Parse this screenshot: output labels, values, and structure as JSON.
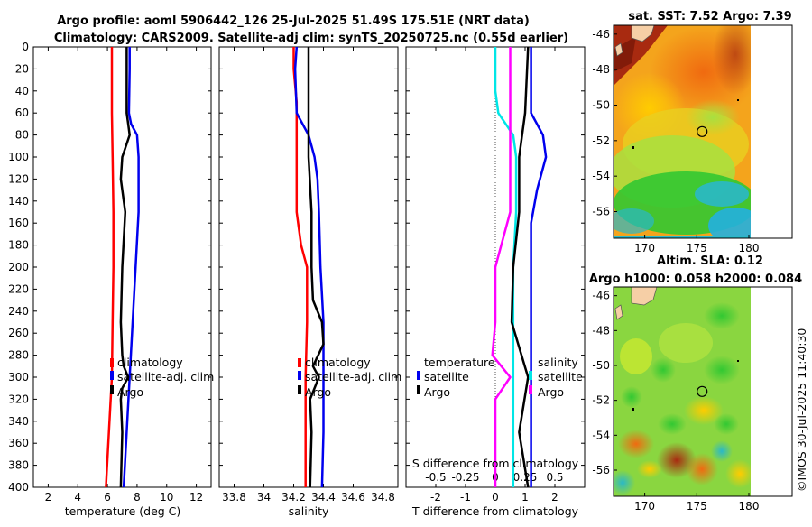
{
  "figure": {
    "title_line1": "Argo profile: aoml 5906442_126 25-Jul-2025 51.49S 175.51E (NRT data)",
    "title_line2": "Climatology: CARS2009. Satellite-adj clim: synTS_20250725.nc (0.55d earlier)",
    "watermark": "©IMOS 30-Jul-2025 11:40:30"
  },
  "colors": {
    "climatology": "#ff0000",
    "satellite": "#0000ee",
    "argo": "#000000",
    "t_diff": "#00e6e6",
    "s_diff": "#ff00ff"
  },
  "chart_data": [
    {
      "type": "line",
      "id": "temperature",
      "xlabel": "temperature (deg C)",
      "ylabel": "",
      "xlim": [
        1,
        13
      ],
      "ylim": [
        400,
        0
      ],
      "xticks": [
        "2",
        "4",
        "6",
        "8",
        "10",
        "12"
      ],
      "yticks": [
        "0",
        "20",
        "40",
        "60",
        "80",
        "100",
        "120",
        "140",
        "160",
        "180",
        "200",
        "220",
        "240",
        "260",
        "280",
        "300",
        "320",
        "340",
        "360",
        "380",
        "400"
      ],
      "legend": [
        "climatology",
        "satellite-adj. clim",
        "Argo"
      ],
      "series": [
        {
          "name": "climatology",
          "depth": [
            0,
            20,
            60,
            100,
            150,
            200,
            250,
            300,
            350,
            400
          ],
          "values": [
            6.3,
            6.3,
            6.3,
            6.35,
            6.4,
            6.4,
            6.35,
            6.3,
            6.1,
            5.9
          ]
        },
        {
          "name": "satellite-adj. clim",
          "depth": [
            0,
            20,
            60,
            70,
            80,
            100,
            150,
            200,
            250,
            300,
            350,
            400
          ],
          "values": [
            7.5,
            7.5,
            7.45,
            7.6,
            8.0,
            8.1,
            8.1,
            7.9,
            7.7,
            7.5,
            7.3,
            7.1
          ]
        },
        {
          "name": "Argo",
          "depth": [
            0,
            20,
            60,
            70,
            80,
            100,
            120,
            150,
            200,
            250,
            280,
            290,
            300,
            310,
            320,
            350,
            400
          ],
          "values": [
            7.3,
            7.3,
            7.3,
            7.4,
            7.5,
            7.0,
            6.9,
            7.2,
            7.0,
            6.9,
            7.0,
            7.1,
            7.4,
            7.0,
            6.9,
            7.0,
            6.9
          ]
        }
      ]
    },
    {
      "type": "line",
      "id": "salinity",
      "xlabel": "salinity",
      "ylabel": "",
      "xlim": [
        33.7,
        34.9
      ],
      "ylim": [
        400,
        0
      ],
      "xticks": [
        "33.8",
        "34",
        "34.2",
        "34.4",
        "34.6",
        "34.8"
      ],
      "legend": [
        "climatology",
        "satellite-adj. clim",
        "Argo"
      ],
      "series": [
        {
          "name": "climatology",
          "depth": [
            0,
            20,
            50,
            100,
            150,
            180,
            200,
            250,
            300,
            350,
            400
          ],
          "values": [
            34.2,
            34.2,
            34.22,
            34.22,
            34.22,
            34.25,
            34.29,
            34.29,
            34.28,
            34.28,
            34.28
          ]
        },
        {
          "name": "satellite-adj. clim",
          "depth": [
            0,
            20,
            60,
            80,
            100,
            120,
            150,
            200,
            250,
            300,
            350,
            400
          ],
          "values": [
            34.22,
            34.21,
            34.22,
            34.3,
            34.34,
            34.36,
            34.37,
            34.38,
            34.4,
            34.4,
            34.4,
            34.39
          ]
        },
        {
          "name": "Argo",
          "depth": [
            0,
            20,
            60,
            100,
            150,
            200,
            230,
            250,
            270,
            290,
            300,
            320,
            350,
            400
          ],
          "values": [
            34.3,
            34.3,
            34.3,
            34.3,
            34.32,
            34.32,
            34.33,
            34.39,
            34.4,
            34.33,
            34.37,
            34.31,
            34.32,
            34.31
          ]
        }
      ]
    },
    {
      "type": "line",
      "id": "difference",
      "xlabel": "T difference from climatology",
      "xlabel_top": "S difference from climatology",
      "xlim": [
        -3,
        3
      ],
      "ylim": [
        400,
        0
      ],
      "xticks": [
        "-2",
        "-1",
        "0",
        "1",
        "2"
      ],
      "xticks_top": [
        "-0.5",
        "-0.25",
        "0",
        "0.25",
        "0.5"
      ],
      "legend_left_title": "temperature",
      "legend_right_title": "salinity",
      "legend": [
        "satellite",
        "Argo"
      ],
      "series": [
        {
          "name": "T satellite",
          "depth": [
            0,
            40,
            60,
            80,
            100,
            150,
            200,
            250,
            300,
            350,
            400
          ],
          "values": [
            0.0,
            0.0,
            0.1,
            0.6,
            0.7,
            0.7,
            0.6,
            0.6,
            0.6,
            0.6,
            0.6
          ]
        },
        {
          "name": "T Argo",
          "depth": [
            0,
            60,
            80,
            100,
            150,
            200,
            250,
            300,
            350,
            400
          ],
          "values": [
            1.1,
            1.0,
            0.9,
            0.8,
            0.8,
            0.6,
            0.55,
            1.1,
            0.8,
            1.1
          ]
        },
        {
          "name": "S satellite",
          "depth": [
            0,
            60,
            80,
            100,
            150,
            200,
            250,
            280,
            300,
            320,
            350,
            400
          ],
          "values": [
            0.5,
            0.5,
            0.5,
            0.5,
            0.5,
            0.0,
            0.0,
            -0.1,
            0.5,
            0.0,
            0.0,
            0.0
          ]
        },
        {
          "name": "S satellite-adj",
          "depth": [
            0,
            60,
            80,
            100,
            130,
            160,
            200,
            250,
            300,
            350,
            400
          ],
          "values": [
            1.2,
            1.2,
            1.6,
            1.7,
            1.4,
            1.2,
            1.2,
            1.2,
            1.2,
            1.2,
            1.2
          ]
        }
      ]
    },
    {
      "type": "heatmap",
      "id": "sst_map",
      "title": "sat. SST: 7.52 Argo: 7.39",
      "xlim": [
        167,
        180
      ],
      "ylim": [
        -57.5,
        -45.5
      ],
      "xticks": [
        "170",
        "175",
        "180"
      ],
      "yticks": [
        "-46",
        "-48",
        "-50",
        "-52",
        "-54",
        "-56"
      ],
      "marker": {
        "lon": 175.51,
        "lat": -51.49
      }
    },
    {
      "type": "heatmap",
      "id": "sla_map",
      "title_line1": "Altim. SLA: 0.12",
      "title_line2": "Argo h1000: 0.058 h2000: 0.084",
      "xlim": [
        167,
        180
      ],
      "ylim": [
        -57.5,
        -45.5
      ],
      "xticks": [
        "170",
        "175",
        "180"
      ],
      "yticks": [
        "-46",
        "-48",
        "-50",
        "-52",
        "-54",
        "-56"
      ],
      "marker": {
        "lon": 175.51,
        "lat": -51.49
      }
    }
  ]
}
